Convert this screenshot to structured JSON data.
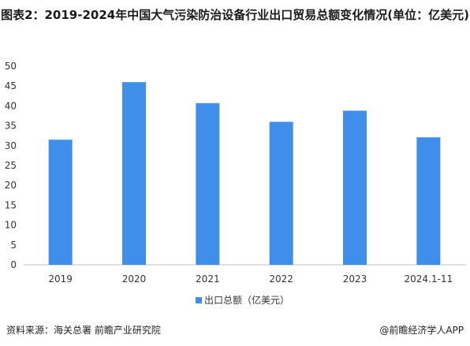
{
  "page_title": "图表2：2019-2024年中国大气污染防治设备行业出口贸易总额变化情况(单位：亿美元)",
  "chart_data": {
    "type": "bar",
    "categories": [
      "2019",
      "2020",
      "2021",
      "2022",
      "2023",
      "2024.1-11"
    ],
    "series": [
      {
        "name": "出口总额（亿美元）",
        "values": [
          31.5,
          46,
          40.7,
          36,
          38.8,
          32.1
        ],
        "color": "#3f8fea"
      }
    ],
    "yticks": [
      "0",
      "5",
      "10",
      "15",
      "20",
      "25",
      "30",
      "35",
      "40",
      "45",
      "50"
    ],
    "ylim": [
      0,
      50
    ],
    "grid": false,
    "legend_position": "bottom"
  },
  "footer": {
    "source": "资料来源：海关总署 前瞻产业研究院",
    "brand": "@前瞻经济学人APP"
  }
}
